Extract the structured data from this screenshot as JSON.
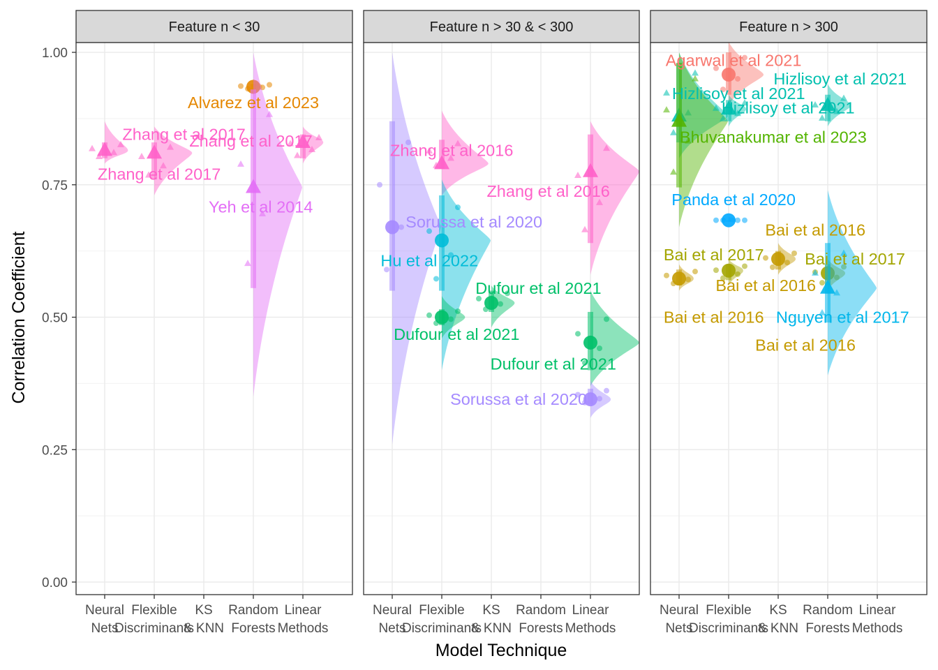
{
  "chart_data": {
    "type": "scatter",
    "xlabel": "Model Technique",
    "ylabel": "Correlation Coefficient",
    "ylim": [
      0,
      1.0
    ],
    "y_ticks": [
      "0.00",
      "0.25",
      "0.50",
      "0.75",
      "1.00"
    ],
    "y_tick_values": [
      0,
      0.25,
      0.5,
      0.75,
      1.0
    ],
    "x_categories": [
      [
        "Neural",
        "Nets"
      ],
      [
        "Flexible",
        "Discriminants"
      ],
      [
        "KS",
        "& KNN"
      ],
      [
        "Random",
        "Forests"
      ],
      [
        "Linear",
        "Methods"
      ]
    ],
    "grid": true,
    "legend": "none",
    "colors": {
      "Zhang et al 2017": "#FF61C9",
      "Alvarez et al 2023": "#E58700",
      "Yeh et al 2014": "#E36EF6",
      "Zhang et al 2016": "#FF61C9",
      "Sorussa et al 2020": "#A58AFF",
      "Hu et al 2022": "#00BCD8",
      "Dufour et al 2021": "#00C069",
      "Agarwal et al 2021": "#F8766D",
      "Hizlisoy et al 2021": "#00C0AF",
      "Bhuvanakumar et al 2023": "#53B400",
      "Panda et al 2020": "#00A9FF",
      "Bai et al 2016": "#C49A00",
      "Bai et al 2017": "#A3A500",
      "Nguyen et al 2017": "#00B6EB"
    },
    "panels": [
      {
        "title": "Feature n < 30",
        "series": [
          {
            "name": "Zhang et al 2017",
            "shape": "triangle",
            "x": 1,
            "y": 0.815,
            "spread": [
              0.8,
              0.83
            ],
            "violin": [
              0.79,
              0.87
            ]
          },
          {
            "name": "Zhang et al 2017",
            "shape": "triangle",
            "x": 2,
            "y": 0.81,
            "spread": [
              0.76,
              0.83
            ],
            "violin": [
              0.73,
              0.86
            ]
          },
          {
            "name": "Alvarez et al 2023",
            "shape": "circle",
            "x": 4,
            "y": 0.935,
            "spread": [
              0.93,
              0.94
            ],
            "violin": [
              0.92,
              0.95
            ]
          },
          {
            "name": "Yeh et al 2014",
            "shape": "triangle",
            "x": 4,
            "y": 0.745,
            "spread": [
              0.555,
              0.93
            ],
            "violin": [
              0.35,
              1.0
            ]
          },
          {
            "name": "Zhang et al 2017",
            "shape": "triangle",
            "x": 5,
            "y": 0.83,
            "spread": [
              0.8,
              0.845
            ],
            "violin": [
              0.79,
              0.86
            ]
          }
        ],
        "labels": [
          {
            "text": "Zhang et al 2017",
            "series": "Zhang et al 2017",
            "x": 2.6,
            "y": 0.845
          },
          {
            "text": "Alvarez et al 2023",
            "series": "Alvarez et al 2023",
            "x": 4.0,
            "y": 0.905
          },
          {
            "text": "Zhang et al 2017",
            "series": "Zhang et al 2017",
            "x": 3.95,
            "y": 0.833
          },
          {
            "text": "Zhang et al 2017",
            "series": "Zhang et al 2017",
            "x": 2.1,
            "y": 0.77
          },
          {
            "text": "Yeh et al 2014",
            "series": "Yeh et al 2014",
            "x": 4.15,
            "y": 0.708
          }
        ]
      },
      {
        "title": "Feature n > 30 & < 300",
        "series": [
          {
            "name": "Sorussa et al 2020",
            "shape": "circle",
            "x": 1,
            "y": 0.67,
            "spread": [
              0.55,
              0.87
            ],
            "violin": [
              0.26,
              1.0
            ]
          },
          {
            "name": "Zhang et al 2016",
            "shape": "triangle",
            "x": 2,
            "y": 0.79,
            "spread": [
              0.78,
              0.835
            ],
            "violin": [
              0.73,
              0.89
            ]
          },
          {
            "name": "Hu et al 2022",
            "shape": "circle",
            "x": 2,
            "y": 0.645,
            "spread": [
              0.55,
              0.73
            ],
            "violin": [
              0.4,
              0.76
            ]
          },
          {
            "name": "Dufour et al 2021",
            "shape": "circle",
            "x": 2,
            "y": 0.5,
            "spread": [
              0.485,
              0.515
            ],
            "violin": [
              0.46,
              0.54
            ]
          },
          {
            "name": "Dufour et al 2021",
            "shape": "circle",
            "x": 3,
            "y": 0.527,
            "spread": [
              0.51,
              0.55
            ],
            "violin": [
              0.48,
              0.56
            ]
          },
          {
            "name": "Zhang et al 2016",
            "shape": "triangle",
            "x": 5,
            "y": 0.775,
            "spread": [
              0.64,
              0.845
            ],
            "violin": [
              0.58,
              0.87
            ]
          },
          {
            "name": "Dufour et al 2021",
            "shape": "circle",
            "x": 5,
            "y": 0.452,
            "spread": [
              0.4,
              0.51
            ],
            "violin": [
              0.37,
              0.55
            ]
          },
          {
            "name": "Sorussa et al 2020",
            "shape": "circle",
            "x": 5,
            "y": 0.345,
            "spread": [
              0.335,
              0.365
            ],
            "violin": [
              0.31,
              0.38
            ]
          }
        ],
        "labels": [
          {
            "text": "Zhang et al 2016",
            "series": "Zhang et al 2016",
            "x": 2.2,
            "y": 0.815
          },
          {
            "text": "Zhang et al 2016",
            "series": "Zhang et al 2016",
            "x": 4.15,
            "y": 0.738
          },
          {
            "text": "Sorussa et al 2020",
            "series": "Sorussa et al 2020",
            "x": 2.65,
            "y": 0.68
          },
          {
            "text": "Hu et al 2022",
            "series": "Hu et al 2022",
            "x": 1.75,
            "y": 0.607
          },
          {
            "text": "Dufour et al 2021",
            "series": "Dufour et al 2021",
            "x": 3.95,
            "y": 0.555
          },
          {
            "text": "Dufour et al 2021",
            "series": "Dufour et al 2021",
            "x": 2.3,
            "y": 0.468
          },
          {
            "text": "Dufour et al 2021",
            "series": "Dufour et al 2021",
            "x": 4.25,
            "y": 0.412
          },
          {
            "text": "Sorussa et al 2020",
            "series": "Sorussa et al 2020",
            "x": 3.55,
            "y": 0.345
          }
        ]
      },
      {
        "title": "Feature n > 300",
        "series": [
          {
            "name": "Agarwal et al 2021",
            "shape": "circle",
            "x": 2,
            "y": 0.958,
            "spread": [
              0.92,
              1.0
            ],
            "violin": [
              0.9,
              1.02
            ]
          },
          {
            "name": "Hizlisoy et al 2021",
            "shape": "triangle",
            "x": 1,
            "y": 0.88,
            "spread": [
              0.83,
              0.98
            ],
            "violin": [
              0.8,
              1.0
            ]
          },
          {
            "name": "Bhuvanakumar et al 2023",
            "shape": "triangle",
            "x": 1,
            "y": 0.87,
            "spread": [
              0.745,
              0.98
            ],
            "violin": [
              0.67,
              1.0
            ]
          },
          {
            "name": "Hizlisoy et al 2021",
            "shape": "triangle",
            "x": 2,
            "y": 0.893,
            "spread": [
              0.87,
              0.91
            ],
            "violin": [
              0.86,
              0.92
            ]
          },
          {
            "name": "Hizlisoy et al 2021",
            "shape": "triangle",
            "x": 4,
            "y": 0.9,
            "spread": [
              0.87,
              0.92
            ],
            "violin": [
              0.86,
              0.94
            ]
          },
          {
            "name": "Panda et al 2020",
            "shape": "circle",
            "x": 2,
            "y": 0.683,
            "spread": [
              0.683,
              0.683
            ],
            "violin": [
              0.68,
              0.69
            ]
          },
          {
            "name": "Bai et al 2016",
            "shape": "circle",
            "x": 1,
            "y": 0.573,
            "spread": [
              0.56,
              0.59
            ],
            "violin": [
              0.55,
              0.6
            ]
          },
          {
            "name": "Bai et al 2017",
            "shape": "circle",
            "x": 2,
            "y": 0.588,
            "spread": [
              0.57,
              0.6
            ],
            "violin": [
              0.56,
              0.61
            ]
          },
          {
            "name": "Bai et al 2016",
            "shape": "circle",
            "x": 3,
            "y": 0.61,
            "spread": [
              0.59,
              0.625
            ],
            "violin": [
              0.58,
              0.64
            ]
          },
          {
            "name": "Bai et al 2017",
            "shape": "circle",
            "x": 4,
            "y": 0.583,
            "spread": [
              0.56,
              0.6
            ],
            "violin": [
              0.55,
              0.61
            ]
          },
          {
            "name": "Nguyen et al 2017",
            "shape": "triangle",
            "x": 4,
            "y": 0.555,
            "spread": [
              0.49,
              0.64
            ],
            "violin": [
              0.39,
              0.74
            ]
          }
        ],
        "labels": [
          {
            "text": "Agarwal et al 2021",
            "series": "Agarwal et al 2021",
            "x": 2.1,
            "y": 0.985
          },
          {
            "text": "Hizlisoy et al 2021",
            "series": "Hizlisoy et al 2021",
            "x": 4.25,
            "y": 0.95
          },
          {
            "text": "Hizlisoy et al 2021",
            "series": "Hizlisoy et al 2021",
            "x": 2.2,
            "y": 0.922
          },
          {
            "text": "Hizlisoy et al 2021",
            "series": "Hizlisoy et al 2021",
            "x": 3.2,
            "y": 0.895
          },
          {
            "text": "Bhuvanakumar et al 2023",
            "series": "Bhuvanakumar et al 2023",
            "x": 2.9,
            "y": 0.84
          },
          {
            "text": "Panda et al 2020",
            "series": "Panda et al 2020",
            "x": 2.1,
            "y": 0.722
          },
          {
            "text": "Bai et al 2016",
            "series": "Bai et al 2016",
            "x": 3.75,
            "y": 0.665
          },
          {
            "text": "Bai et al 2017",
            "series": "Bai et al 2017",
            "x": 1.7,
            "y": 0.618
          },
          {
            "text": "Bai et al 2017",
            "series": "Bai et al 2017",
            "x": 4.55,
            "y": 0.61
          },
          {
            "text": "Bai et al 2016",
            "series": "Bai et al 2016",
            "x": 2.75,
            "y": 0.56
          },
          {
            "text": "Bai et al 2016",
            "series": "Bai et al 2016",
            "x": 1.7,
            "y": 0.5
          },
          {
            "text": "Nguyen et al 2017",
            "series": "Nguyen et al 2017",
            "x": 4.3,
            "y": 0.5
          },
          {
            "text": "Bai et al 2016",
            "series": "Bai et al 2016",
            "x": 3.55,
            "y": 0.447
          }
        ]
      }
    ]
  }
}
